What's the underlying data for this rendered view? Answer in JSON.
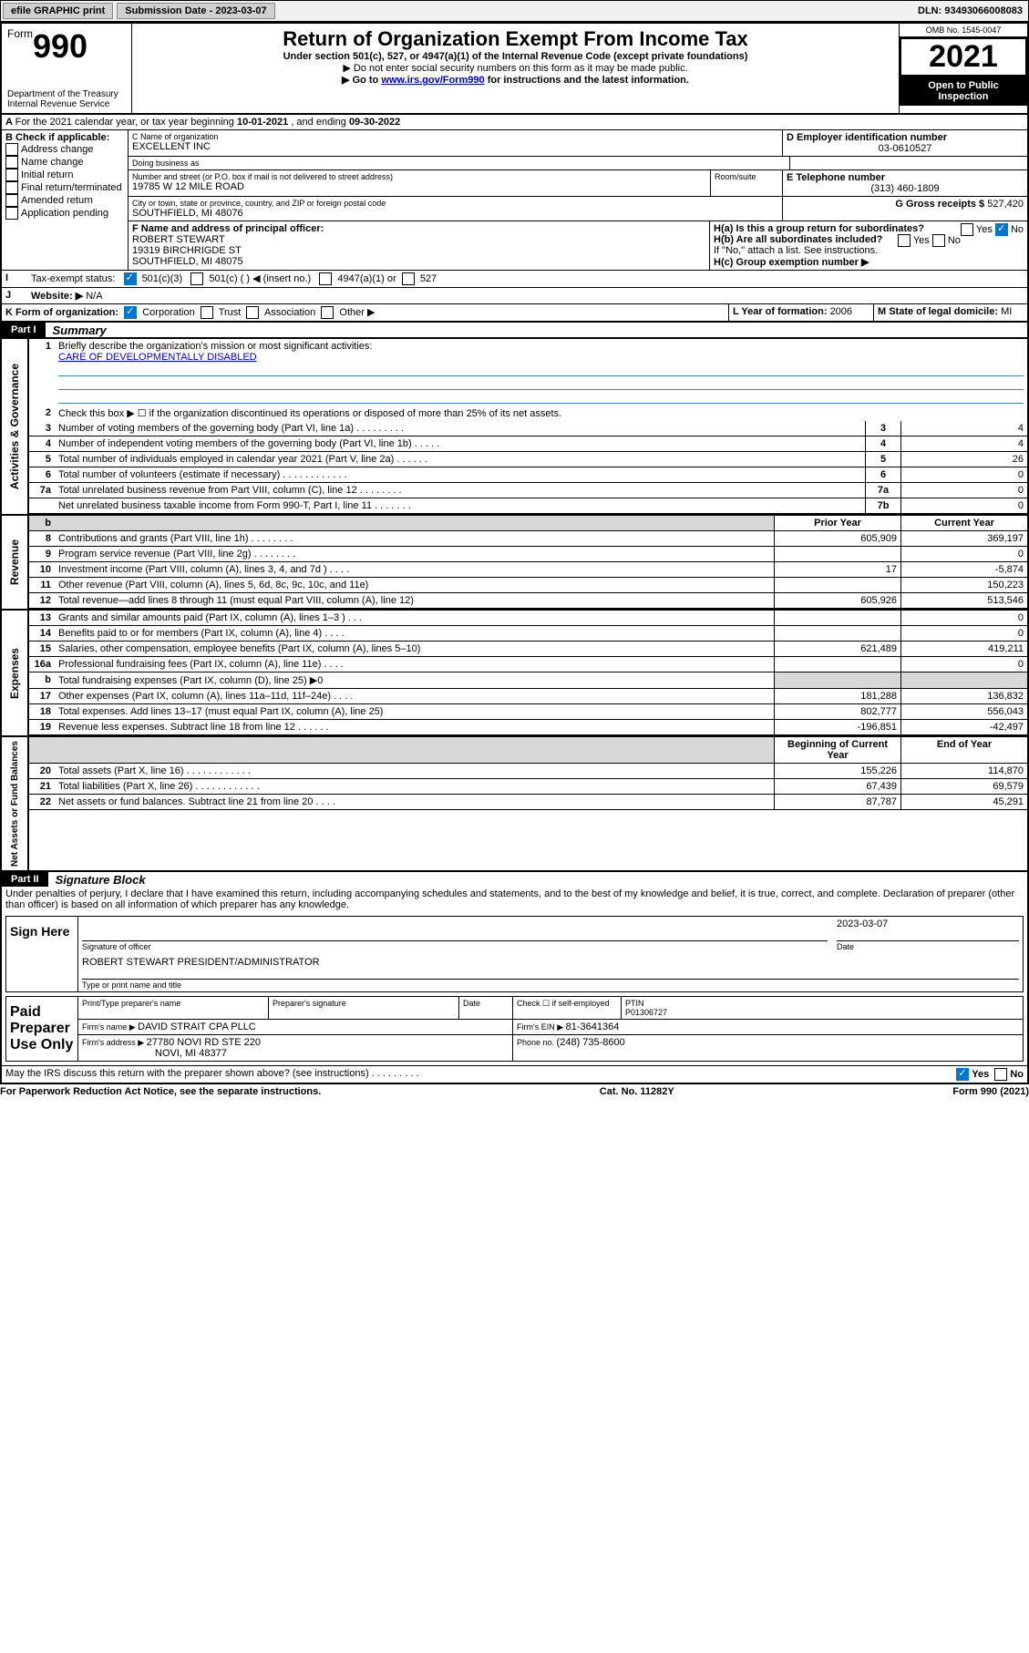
{
  "topbar": {
    "efile": "efile GRAPHIC print",
    "subdate_label": "Submission Date - ",
    "subdate": "2023-03-07",
    "dln_label": "DLN: ",
    "dln": "93493066008083"
  },
  "header": {
    "form_word": "Form",
    "form_no": "990",
    "dept": "Department of the Treasury\nInternal Revenue Service",
    "title": "Return of Organization Exempt From Income Tax",
    "sub1": "Under section 501(c), 527, or 4947(a)(1) of the Internal Revenue Code (except private foundations)",
    "sub2": "Do not enter social security numbers on this form as it may be made public.",
    "sub3_a": "Go to ",
    "sub3_link": "www.irs.gov/Form990",
    "sub3_b": " for instructions and the latest information.",
    "omb": "OMB No. 1545-0047",
    "year": "2021",
    "open": "Open to Public Inspection"
  },
  "lineA": {
    "text_a": "For the 2021 calendar year, or tax year beginning ",
    "begin": "10-01-2021",
    "text_b": " , and ending ",
    "end": "09-30-2022"
  },
  "boxB": {
    "label": "B Check if applicable:",
    "opts": [
      "Address change",
      "Name change",
      "Initial return",
      "Final return/terminated",
      "Amended return",
      "Application pending"
    ]
  },
  "boxC": {
    "name_label": "C Name of organization",
    "name": "EXCELLENT INC",
    "dba_label": "Doing business as",
    "dba": "",
    "addr_label": "Number and street (or P.O. box if mail is not delivered to street address)",
    "room_label": "Room/suite",
    "addr": "19785 W 12 MILE ROAD",
    "city_label": "City or town, state or province, country, and ZIP or foreign postal code",
    "city": "SOUTHFIELD, MI  48076"
  },
  "boxD": {
    "label": "D Employer identification number",
    "val": "03-0610527"
  },
  "boxE": {
    "label": "E Telephone number",
    "val": "(313) 460-1809"
  },
  "boxG": {
    "label": "G Gross receipts $ ",
    "val": "527,420"
  },
  "boxF": {
    "label": "F Name and address of principal officer:",
    "l1": "ROBERT STEWART",
    "l2": "19319 BIRCHRIGDE ST",
    "l3": "SOUTHFIELD, MI  48075"
  },
  "boxH": {
    "a": "H(a)  Is this a group return for subordinates?",
    "b": "H(b)  Are all subordinates included?",
    "note": "If \"No,\" attach a list. See instructions.",
    "c": "H(c)  Group exemption number ▶",
    "yes": "Yes",
    "no": "No"
  },
  "rowI": {
    "label": "Tax-exempt status:",
    "o1": "501(c)(3)",
    "o2": "501(c) (  ) ◀ (insert no.)",
    "o3": "4947(a)(1) or",
    "o4": "527"
  },
  "rowJ": {
    "label": "Website: ▶",
    "val": "N/A"
  },
  "rowK": {
    "label": "K Form of organization:",
    "o1": "Corporation",
    "o2": "Trust",
    "o3": "Association",
    "o4": "Other ▶"
  },
  "rowL": {
    "label": "L Year of formation: ",
    "val": "2006"
  },
  "rowM": {
    "label": "M State of legal domicile: ",
    "val": "MI"
  },
  "part1": {
    "label": "Part I",
    "title": "Summary"
  },
  "mission": {
    "q": "Briefly describe the organization's mission or most significant activities:",
    "a": "CARE OF DEVELOPMENTALLY DISABLED"
  },
  "line2": "Check this box ▶ ☐  if the organization discontinued its operations or disposed of more than 25% of its net assets.",
  "govlines": [
    {
      "n": "3",
      "t": "Number of voting members of the governing body (Part VI, line 1a)   .     .     .     .     .     .     .     .     .",
      "b": "3",
      "v": "4"
    },
    {
      "n": "4",
      "t": "Number of independent voting members of the governing body (Part VI, line 1b)   .     .     .     .     .",
      "b": "4",
      "v": "4"
    },
    {
      "n": "5",
      "t": "Total number of individuals employed in calendar year 2021 (Part V, line 2a)   .     .     .     .     .     .",
      "b": "5",
      "v": "26"
    },
    {
      "n": "6",
      "t": "Total number of volunteers (estimate if necessary)   .     .     .     .     .     .     .     .     .     .     .     .",
      "b": "6",
      "v": "0"
    },
    {
      "n": "7a",
      "t": "Total unrelated business revenue from Part VIII, column (C), line 12   .     .     .     .     .     .     .     .",
      "b": "7a",
      "v": "0"
    },
    {
      "n": "",
      "t": "Net unrelated business taxable income from Form 990-T, Part I, line 11   .     .     .     .     .     .     .",
      "b": "7b",
      "v": "0"
    }
  ],
  "cols": {
    "prior": "Prior Year",
    "curr": "Current Year",
    "beg": "Beginning of Current Year",
    "end": "End of Year"
  },
  "revenue": [
    {
      "n": "8",
      "t": "Contributions and grants (Part VIII, line 1h)   .     .     .     .     .     .     .     .",
      "p": "605,909",
      "c": "369,197"
    },
    {
      "n": "9",
      "t": "Program service revenue (Part VIII, line 2g)   .     .     .     .     .     .     .     .",
      "p": "",
      "c": "0"
    },
    {
      "n": "10",
      "t": "Investment income (Part VIII, column (A), lines 3, 4, and 7d )   .     .     .     .",
      "p": "17",
      "c": "-5,874"
    },
    {
      "n": "11",
      "t": "Other revenue (Part VIII, column (A), lines 5, 6d, 8c, 9c, 10c, and 11e)",
      "p": "",
      "c": "150,223"
    },
    {
      "n": "12",
      "t": "Total revenue—add lines 8 through 11 (must equal Part VIII, column (A), line 12)",
      "p": "605,926",
      "c": "513,546"
    }
  ],
  "expenses": [
    {
      "n": "13",
      "t": "Grants and similar amounts paid (Part IX, column (A), lines 1–3 )   .     .     .",
      "p": "",
      "c": "0"
    },
    {
      "n": "14",
      "t": "Benefits paid to or for members (Part IX, column (A), line 4)   .     .     .     .",
      "p": "",
      "c": "0"
    },
    {
      "n": "15",
      "t": "Salaries, other compensation, employee benefits (Part IX, column (A), lines 5–10)",
      "p": "621,489",
      "c": "419,211"
    },
    {
      "n": "16a",
      "t": "Professional fundraising fees (Part IX, column (A), line 11e)   .     .     .     .",
      "p": "",
      "c": "0"
    },
    {
      "n": "b",
      "t": "Total fundraising expenses (Part IX, column (D), line 25) ▶0",
      "p": "shade",
      "c": "shade"
    },
    {
      "n": "17",
      "t": "Other expenses (Part IX, column (A), lines 11a–11d, 11f–24e)   .     .     .     .",
      "p": "181,288",
      "c": "136,832"
    },
    {
      "n": "18",
      "t": "Total expenses. Add lines 13–17 (must equal Part IX, column (A), line 25)",
      "p": "802,777",
      "c": "556,043"
    },
    {
      "n": "19",
      "t": "Revenue less expenses. Subtract line 18 from line 12   .     .     .     .     .     .",
      "p": "-196,851",
      "c": "-42,497"
    }
  ],
  "netassets": [
    {
      "n": "20",
      "t": "Total assets (Part X, line 16)   .     .     .     .     .     .     .     .     .     .     .     .",
      "p": "155,226",
      "c": "114,870"
    },
    {
      "n": "21",
      "t": "Total liabilities (Part X, line 26)   .     .     .     .     .     .     .     .     .     .     .     .",
      "p": "67,439",
      "c": "69,579"
    },
    {
      "n": "22",
      "t": "Net assets or fund balances. Subtract line 21 from line 20   .     .     .     .",
      "p": "87,787",
      "c": "45,291"
    }
  ],
  "sidebands": {
    "gov": "Activities & Governance",
    "rev": "Revenue",
    "exp": "Expenses",
    "net": "Net Assets or Fund Balances"
  },
  "part2": {
    "label": "Part II",
    "title": "Signature Block"
  },
  "perjury": "Under penalties of perjury, I declare that I have examined this return, including accompanying schedules and statements, and to the best of my knowledge and belief, it is true, correct, and complete. Declaration of preparer (other than officer) is based on all information of which preparer has any knowledge.",
  "sign": {
    "here": "Sign Here",
    "sigline": "Signature of officer",
    "dateline": "Date",
    "date": "2023-03-07",
    "name": "ROBERT STEWART  PRESIDENT/ADMINISTRATOR",
    "nameline": "Type or print name and title"
  },
  "paid": {
    "title": "Paid Preparer Use Only",
    "h1": "Print/Type preparer's name",
    "h2": "Preparer's signature",
    "h3": "Date",
    "checkself": "Check ☐  if self-employed",
    "ptin_l": "PTIN",
    "ptin": "P01306727",
    "firm_l": "Firm's name    ▶ ",
    "firm": "DAVID STRAIT CPA PLLC",
    "ein_l": "Firm's EIN ▶ ",
    "ein": "81-3641364",
    "addr_l": "Firm's address ▶ ",
    "addr1": "27780 NOVI RD STE 220",
    "addr2": "NOVI, MI  48377",
    "phone_l": "Phone no. ",
    "phone": "(248) 735-8600"
  },
  "discuss": "May the IRS discuss this return with the preparer shown above? (see instructions)   .     .     .     .     .     .     .     .     .",
  "footer": {
    "l": "For Paperwork Reduction Act Notice, see the separate instructions.",
    "m": "Cat. No. 11282Y",
    "r": "Form 990 (2021)"
  }
}
